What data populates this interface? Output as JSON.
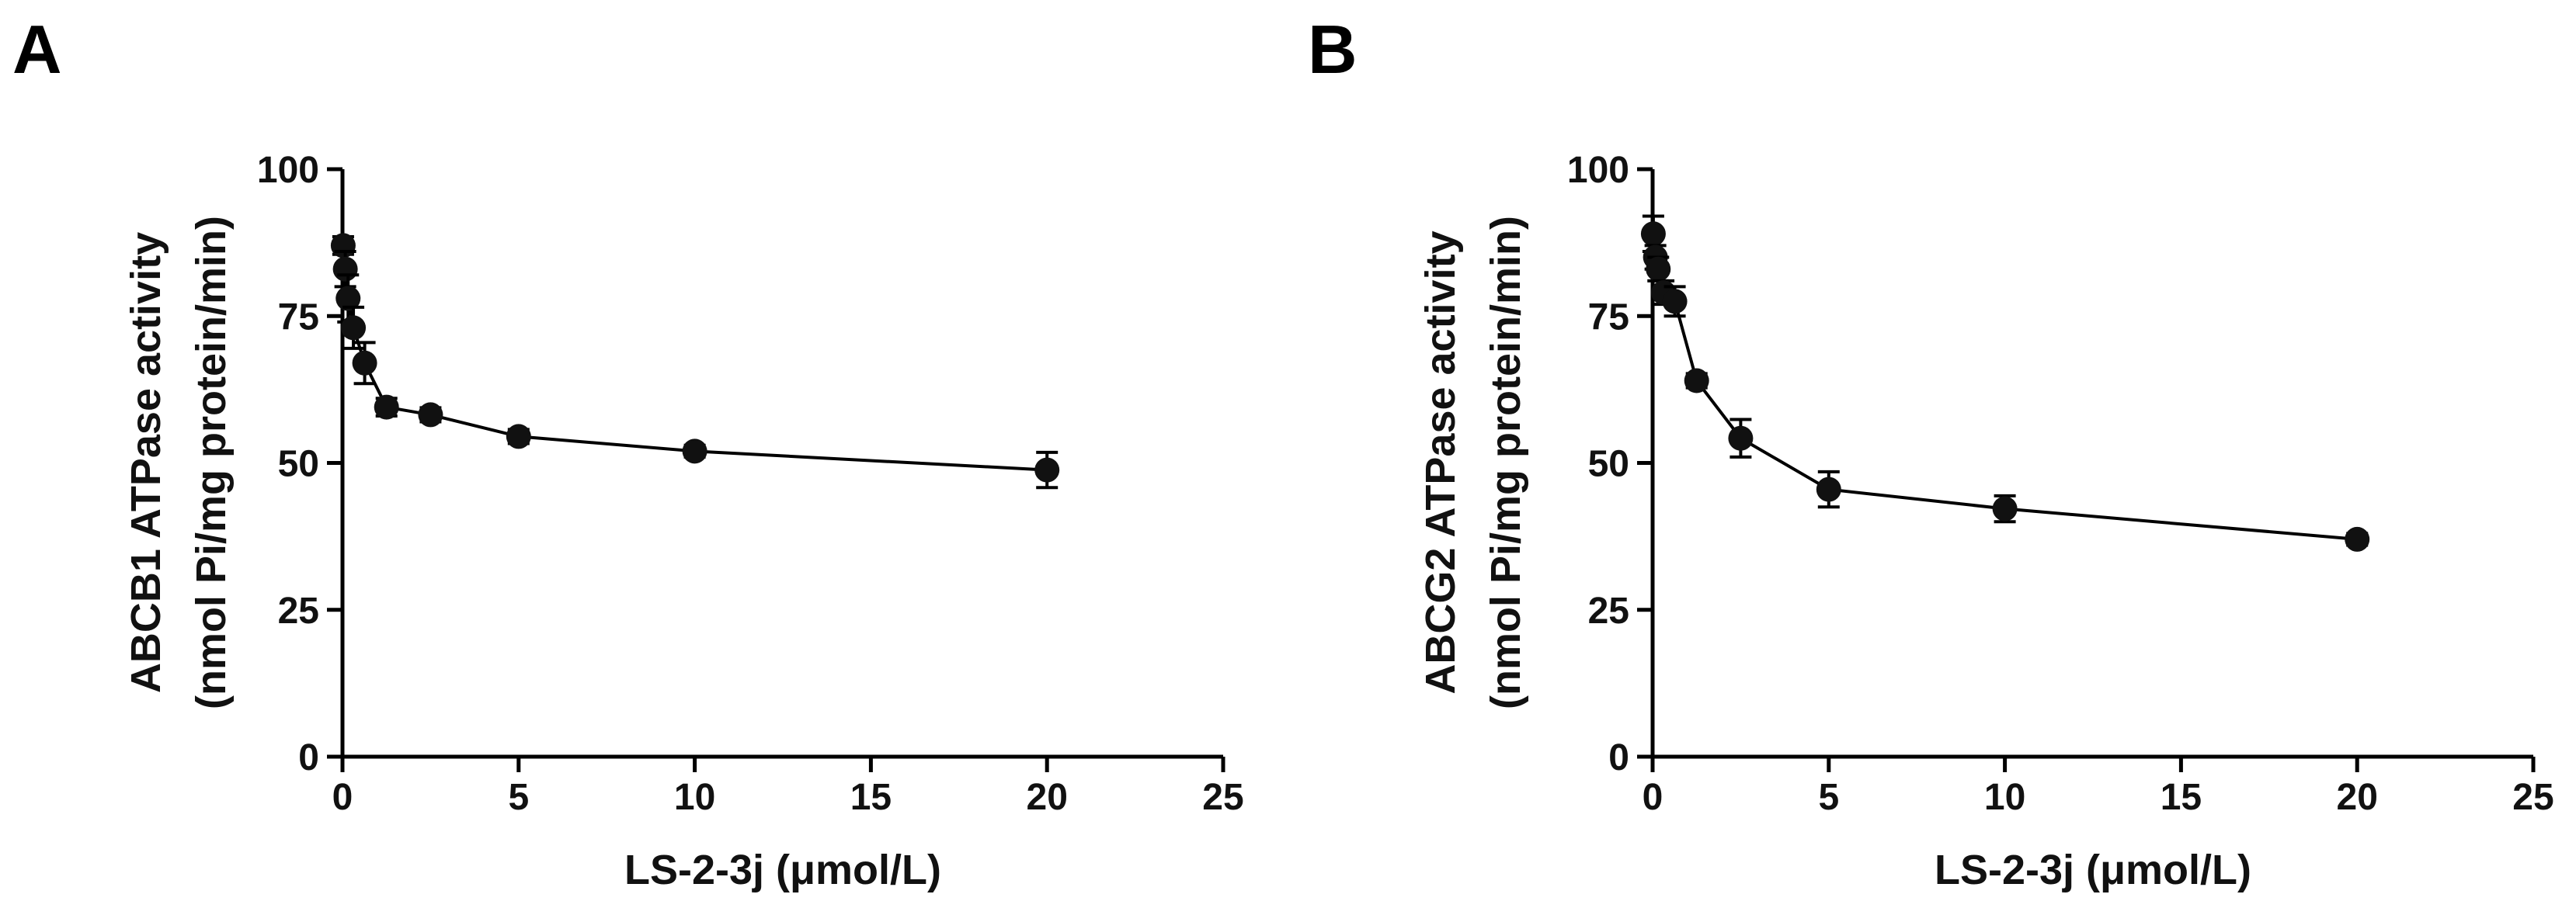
{
  "chart_data": [
    {
      "type": "scatter",
      "panel_label": "A",
      "title": "",
      "xlabel": "LS-2-3j (μmol/L)",
      "ylabel_line1": "ABCB1 ATPase activity",
      "ylabel_line2": "(nmol Pi/mg protein/min)",
      "xlim": [
        0,
        25
      ],
      "ylim": [
        0,
        100
      ],
      "xticks": [
        0,
        5,
        10,
        15,
        20,
        25
      ],
      "yticks": [
        0,
        25,
        50,
        75,
        100
      ],
      "xtick_labels": [
        "0",
        "5",
        "10",
        "15",
        "20",
        "25"
      ],
      "ytick_labels": [
        "0",
        "25",
        "50",
        "75",
        "100"
      ],
      "connected": true,
      "series": [
        {
          "name": "ABCB1",
          "x": [
            0.02,
            0.08,
            0.16,
            0.31,
            0.63,
            1.25,
            2.5,
            5,
            10,
            20
          ],
          "y": [
            87,
            83,
            78,
            73,
            67,
            59.5,
            58.2,
            54.5,
            52,
            48.8
          ],
          "err": [
            1.5,
            3,
            4,
            3.5,
            3.5,
            1.5,
            1.2,
            1.2,
            1,
            3
          ]
        }
      ]
    },
    {
      "type": "scatter",
      "panel_label": "B",
      "title": "",
      "xlabel": "LS-2-3j (μmol/L)",
      "ylabel_line1": "ABCG2 ATPase activity",
      "ylabel_line2": "(nmol Pi/mg protein/min)",
      "xlim": [
        0,
        25
      ],
      "ylim": [
        0,
        100
      ],
      "xticks": [
        0,
        5,
        10,
        15,
        20,
        25
      ],
      "yticks": [
        0,
        25,
        50,
        75,
        100
      ],
      "xtick_labels": [
        "0",
        "5",
        "10",
        "15",
        "20",
        "25"
      ],
      "ytick_labels": [
        "0",
        "25",
        "50",
        "75",
        "100"
      ],
      "connected": true,
      "series": [
        {
          "name": "ABCG2",
          "x": [
            0.02,
            0.08,
            0.16,
            0.31,
            0.63,
            1.25,
            2.5,
            5,
            10,
            20
          ],
          "y": [
            89,
            85,
            83,
            79,
            77.5,
            64,
            54.2,
            45.5,
            42.2,
            37
          ],
          "err": [
            3,
            2,
            2,
            2,
            2.5,
            1.2,
            3.2,
            3,
            2.2,
            1
          ]
        }
      ]
    }
  ]
}
